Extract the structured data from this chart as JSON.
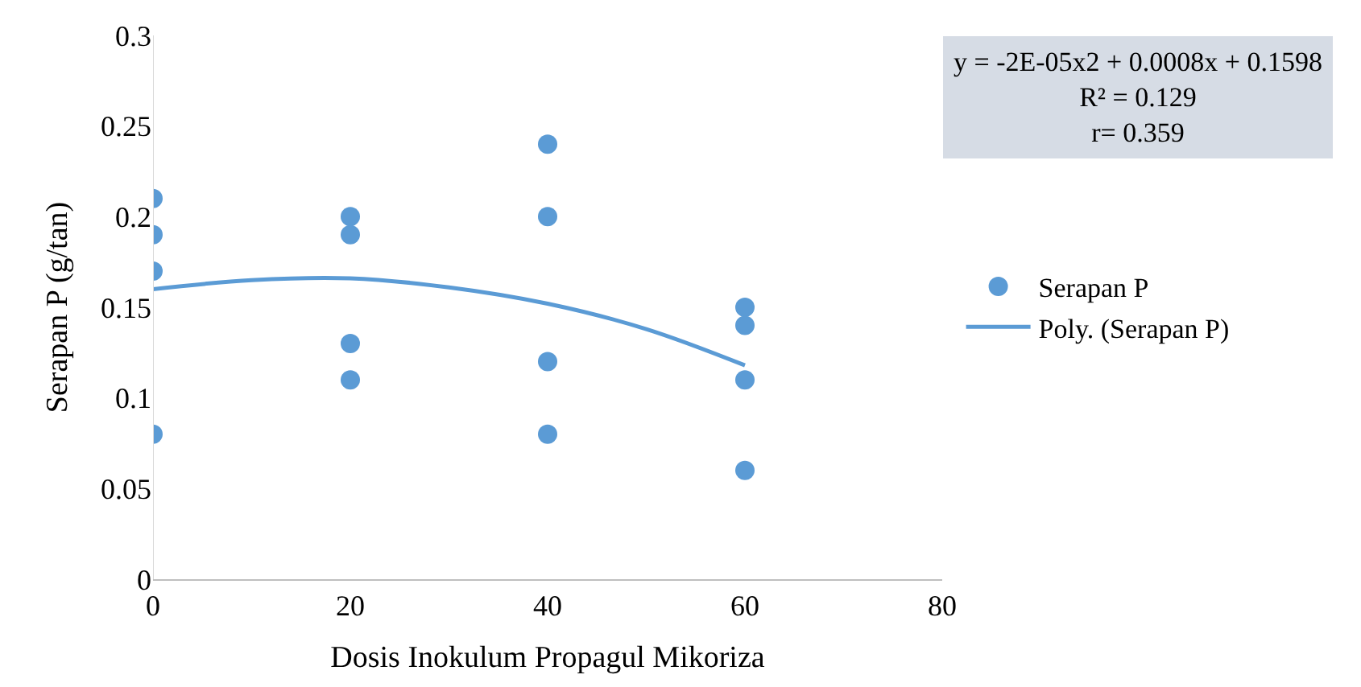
{
  "chart_data": {
    "type": "scatter",
    "xlabel": "Dosis Inokulum Propagul Mikoriza",
    "ylabel": "Serapan P (g/tan)",
    "xlim": [
      0,
      80
    ],
    "xticks": [
      0,
      20,
      40,
      60,
      80
    ],
    "ylim": [
      0,
      0.3
    ],
    "yticks": [
      0,
      0.05,
      0.1,
      0.15,
      0.2,
      0.25,
      0.3
    ],
    "legend": "right",
    "series": [
      {
        "name": "Serapan P",
        "marker": "circle",
        "color": "#5b9bd5",
        "x": [
          0,
          0,
          0,
          0,
          20,
          20,
          20,
          20,
          40,
          40,
          40,
          40,
          60,
          60,
          60,
          60
        ],
        "values": [
          0.21,
          0.19,
          0.17,
          0.08,
          0.2,
          0.19,
          0.13,
          0.11,
          0.24,
          0.2,
          0.12,
          0.08,
          0.15,
          0.14,
          0.11,
          0.06
        ]
      },
      {
        "name": "Poly. (Serapan P)",
        "type": "line",
        "marker": "none",
        "color": "#5b9bd5",
        "x": [
          0,
          10,
          20,
          30,
          40,
          50,
          60
        ],
        "values": [
          0.16,
          0.165,
          0.166,
          0.161,
          0.152,
          0.138,
          0.118
        ]
      }
    ],
    "annotations": [
      "y = -2E-05x2 + 0.0008x + 0.1598\nR² = 0.129\nr= 0.359"
    ]
  }
}
